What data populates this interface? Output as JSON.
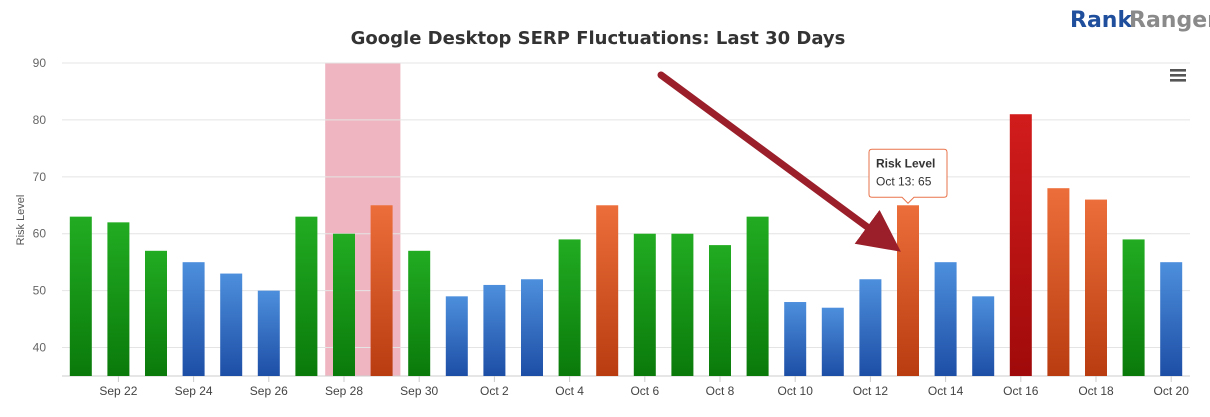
{
  "brand": {
    "part1": "Rank",
    "part2": "Ranger"
  },
  "menu_icon": "hamburger-menu-icon",
  "colors": {
    "green_top": "#22ac22",
    "green_bottom": "#0a7a0a",
    "blue_top": "#4d8fdc",
    "blue_bottom": "#1d4ea6",
    "orange_top": "#ec6e3a",
    "orange_bottom": "#b83c10",
    "red_top": "#d21c1c",
    "red_bottom": "#a00a0a",
    "highlight": "#efb6c1",
    "arrow": "#9a1f2a",
    "tooltip_border": "#e8734a"
  },
  "chart_data": {
    "type": "bar",
    "title": "Google Desktop SERP Fluctuations: Last 30 Days",
    "xlabel": "",
    "ylabel": "Risk Level",
    "ylim": [
      35,
      90
    ],
    "yticks": [
      40,
      50,
      60,
      70,
      80,
      90
    ],
    "grid": true,
    "categories": [
      "Sep 21",
      "Sep 22",
      "Sep 23",
      "Sep 24",
      "Sep 25",
      "Sep 26",
      "Sep 27",
      "Sep 28",
      "Sep 29",
      "Sep 30",
      "Oct 1",
      "Oct 2",
      "Oct 3",
      "Oct 4",
      "Oct 5",
      "Oct 6",
      "Oct 7",
      "Oct 8",
      "Oct 9",
      "Oct 10",
      "Oct 11",
      "Oct 12",
      "Oct 13",
      "Oct 14",
      "Oct 15",
      "Oct 16",
      "Oct 17",
      "Oct 18",
      "Oct 19",
      "Oct 20"
    ],
    "xtick_labels": [
      "",
      "Sep 22",
      "",
      "Sep 24",
      "",
      "Sep 26",
      "",
      "Sep 28",
      "",
      "Sep 30",
      "",
      "Oct 2",
      "",
      "Oct 4",
      "",
      "Oct 6",
      "",
      "Oct 8",
      "",
      "Oct 10",
      "",
      "Oct 12",
      "",
      "Oct 14",
      "",
      "Oct 16",
      "",
      "Oct 18",
      "",
      "Oct 20"
    ],
    "values": [
      63,
      62,
      57,
      55,
      53,
      50,
      63,
      60,
      65,
      57,
      49,
      51,
      52,
      59,
      65,
      60,
      60,
      58,
      63,
      48,
      47,
      52,
      65,
      55,
      49,
      81,
      68,
      66,
      59,
      55
    ],
    "bar_colors": [
      "green",
      "green",
      "green",
      "blue",
      "blue",
      "blue",
      "green",
      "green",
      "orange",
      "green",
      "blue",
      "blue",
      "blue",
      "green",
      "orange",
      "green",
      "green",
      "green",
      "green",
      "blue",
      "blue",
      "blue",
      "orange",
      "blue",
      "blue",
      "red",
      "orange",
      "orange",
      "green",
      "blue"
    ],
    "highlight_band": [
      "Sep 28",
      "Sep 29"
    ],
    "annotation": {
      "type": "arrow",
      "points_to": "Oct 13"
    },
    "tooltip": {
      "title": "Risk Level",
      "text": "Oct 13: 65",
      "category": "Oct 13",
      "value": 65
    }
  }
}
